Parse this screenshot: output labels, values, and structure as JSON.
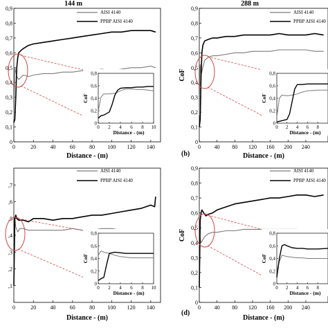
{
  "chart_data": [
    {
      "type": "line",
      "panel": "a",
      "title": "144 m",
      "xlabel": "Distance - (m)",
      "ylabel": "",
      "xlim": [
        0,
        150
      ],
      "ylim": [
        0,
        0.9
      ],
      "xticks": [
        "0",
        "20",
        "40",
        "60",
        "80",
        "100",
        "120",
        "140"
      ],
      "yticks": [
        "0",
        "0,1",
        "0,2",
        "0,3",
        "0,4",
        "0,5",
        "0,6",
        "0,7",
        "0,8",
        "0,9"
      ],
      "panel_label": "",
      "legend": [
        "AISI 4140",
        "PPBP AISI 4140"
      ],
      "series": [
        {
          "name": "AISI 4140",
          "color": "#7a7a7a",
          "x": [
            0,
            1,
            2,
            3,
            5,
            8,
            10,
            15,
            20,
            30,
            40,
            50,
            60,
            70,
            80,
            90,
            100,
            110,
            120,
            130,
            140,
            145
          ],
          "y": [
            0.15,
            0.5,
            0.47,
            0.44,
            0.42,
            0.44,
            0.45,
            0.44,
            0.45,
            0.46,
            0.46,
            0.47,
            0.47,
            0.48,
            0.48,
            0.49,
            0.48,
            0.49,
            0.5,
            0.5,
            0.51,
            0.5
          ]
        },
        {
          "name": "PPBP AISI 4140",
          "color": "#000000",
          "x": [
            0,
            1,
            2,
            3,
            4,
            5,
            8,
            10,
            15,
            20,
            30,
            40,
            50,
            60,
            70,
            80,
            90,
            100,
            110,
            120,
            130,
            140,
            145
          ],
          "y": [
            0.13,
            0.15,
            0.3,
            0.5,
            0.57,
            0.6,
            0.62,
            0.63,
            0.65,
            0.66,
            0.67,
            0.68,
            0.69,
            0.7,
            0.71,
            0.72,
            0.73,
            0.74,
            0.74,
            0.75,
            0.75,
            0.75,
            0.74
          ]
        }
      ],
      "inset": {
        "xlabel": "Distance - (m)",
        "ylabel": "CoF",
        "xlim": [
          0,
          10
        ],
        "ylim": [
          0,
          0.8
        ],
        "xticks": [
          "0",
          "2",
          "4",
          "6",
          "8",
          "10"
        ],
        "yticks": [
          "0",
          "0,2",
          "0,4",
          "0,6",
          "0,8"
        ],
        "series": [
          {
            "name": "AISI 4140",
            "color": "#7a7a7a",
            "x": [
              0,
              0.5,
              1,
              2,
              3,
              4,
              5,
              6,
              7,
              8,
              9,
              10
            ],
            "y": [
              0.2,
              0.42,
              0.47,
              0.47,
              0.48,
              0.52,
              0.55,
              0.55,
              0.54,
              0.54,
              0.53,
              0.52
            ]
          },
          {
            "name": "PPBP AISI 4140",
            "color": "#000000",
            "x": [
              0,
              0.5,
              1,
              2,
              2.5,
              3,
              3.5,
              4,
              5,
              6,
              7,
              8,
              9,
              10
            ],
            "y": [
              0.08,
              0.12,
              0.13,
              0.18,
              0.3,
              0.45,
              0.53,
              0.56,
              0.57,
              0.57,
              0.58,
              0.58,
              0.59,
              0.59
            ]
          }
        ]
      }
    },
    {
      "type": "line",
      "panel": "b",
      "title": "288 m",
      "xlabel": "Distance - (m)",
      "ylabel": "CoF",
      "xlim": [
        0,
        290
      ],
      "ylim": [
        0,
        0.9
      ],
      "xticks": [
        "0",
        "40",
        "80",
        "120",
        "160",
        "200",
        "240"
      ],
      "yticks": [
        "0",
        "0,1",
        "0,2",
        "0,3",
        "0,4",
        "0,5",
        "0,6",
        "0,7",
        "0,8",
        "0,9"
      ],
      "panel_label": "(b)",
      "legend": [
        "AISI 4140",
        "PPBP AISI 4140"
      ],
      "series": [
        {
          "name": "AISI 4140",
          "color": "#7a7a7a",
          "x": [
            0,
            2,
            4,
            8,
            12,
            20,
            30,
            40,
            60,
            80,
            100,
            120,
            140,
            160,
            180,
            200,
            220,
            240,
            260,
            280
          ],
          "y": [
            0.18,
            0.52,
            0.45,
            0.5,
            0.55,
            0.57,
            0.58,
            0.58,
            0.59,
            0.6,
            0.6,
            0.61,
            0.61,
            0.61,
            0.62,
            0.62,
            0.62,
            0.62,
            0.61,
            0.61
          ]
        },
        {
          "name": "PPBP AISI 4140",
          "color": "#000000",
          "x": [
            0,
            2,
            4,
            6,
            8,
            12,
            20,
            30,
            40,
            60,
            80,
            100,
            120,
            140,
            160,
            180,
            200,
            220,
            240,
            260,
            280
          ],
          "y": [
            0.1,
            0.15,
            0.45,
            0.6,
            0.65,
            0.68,
            0.69,
            0.7,
            0.7,
            0.71,
            0.71,
            0.72,
            0.72,
            0.72,
            0.72,
            0.73,
            0.72,
            0.72,
            0.72,
            0.73,
            0.72
          ]
        }
      ],
      "inset": {
        "xlabel": "Distance - (m)",
        "ylabel": "CoF",
        "xlim": [
          0,
          10
        ],
        "ylim": [
          0,
          0.8
        ],
        "xticks": [
          "0",
          "2",
          "4",
          "6",
          "8",
          "10"
        ],
        "yticks": [
          "0",
          "0,2",
          "0,4",
          "0,6",
          "0,8"
        ],
        "series": [
          {
            "name": "AISI 4140",
            "color": "#7a7a7a",
            "x": [
              0,
              0.5,
              1,
              2,
              3,
              4,
              5,
              6,
              8,
              10
            ],
            "y": [
              0.1,
              0.4,
              0.45,
              0.44,
              0.45,
              0.47,
              0.5,
              0.52,
              0.53,
              0.53
            ]
          },
          {
            "name": "PPBP AISI 4140",
            "color": "#000000",
            "x": [
              0,
              1,
              2,
              2.5,
              3,
              3.5,
              4,
              5,
              6,
              8,
              10
            ],
            "y": [
              0.02,
              0.04,
              0.06,
              0.15,
              0.35,
              0.55,
              0.62,
              0.62,
              0.63,
              0.63,
              0.63
            ]
          }
        ]
      }
    },
    {
      "type": "line",
      "panel": "c",
      "title": "",
      "xlabel": "Distance - (m)",
      "ylabel": "",
      "xlim": [
        0,
        150
      ],
      "ylim": [
        0,
        0.8
      ],
      "xticks": [
        "0",
        "20",
        "40",
        "60",
        "80",
        "100",
        "120",
        "140"
      ],
      "yticks": [
        ",1",
        ",2",
        ",3",
        ",4",
        ",5",
        ",6",
        ",7"
      ],
      "panel_label": "",
      "legend": [
        "AISI 4140",
        "PPBP AISI 4140"
      ],
      "series": [
        {
          "name": "AISI 4140",
          "color": "#7a7a7a",
          "x": [
            0,
            1,
            2,
            4,
            6,
            10,
            15,
            20,
            30,
            40,
            50,
            60,
            70,
            80,
            90,
            100,
            110,
            120,
            130,
            140,
            145
          ],
          "y": [
            0.12,
            0.5,
            0.45,
            0.42,
            0.44,
            0.44,
            0.43,
            0.43,
            0.43,
            0.43,
            0.43,
            0.44,
            0.43,
            0.43,
            0.44,
            0.44,
            0.43,
            0.43,
            0.43,
            0.42,
            0.42
          ]
        },
        {
          "name": "PPBP AISI 4140",
          "color": "#000000",
          "x": [
            0,
            1,
            2,
            3,
            5,
            10,
            15,
            20,
            30,
            40,
            50,
            60,
            70,
            80,
            90,
            100,
            110,
            120,
            130,
            140,
            144,
            145
          ],
          "y": [
            0.1,
            0.5,
            0.52,
            0.5,
            0.49,
            0.49,
            0.48,
            0.5,
            0.5,
            0.49,
            0.5,
            0.5,
            0.51,
            0.52,
            0.52,
            0.53,
            0.54,
            0.55,
            0.56,
            0.58,
            0.57,
            0.63
          ]
        }
      ],
      "inset": {
        "xlabel": "Distance - (m)",
        "ylabel": "CoF",
        "xlim": [
          0,
          10
        ],
        "ylim": [
          0,
          0.8
        ],
        "xticks": [
          "0",
          "2",
          "4",
          "6",
          "8",
          "10"
        ],
        "yticks": [
          "0",
          "0,2",
          "0,4",
          "0,6",
          "0,8"
        ],
        "series": [
          {
            "name": "AISI 4140",
            "color": "#7a7a7a",
            "x": [
              0,
              0.5,
              1,
              2,
              3,
              4,
              5,
              6,
              8,
              10
            ],
            "y": [
              0.45,
              0.52,
              0.5,
              0.48,
              0.45,
              0.43,
              0.42,
              0.41,
              0.41,
              0.41
            ]
          },
          {
            "name": "PPBP AISI 4140",
            "color": "#000000",
            "x": [
              0,
              0.5,
              1,
              1.5,
              2,
              3,
              4,
              5,
              6,
              8,
              10
            ],
            "y": [
              0.05,
              0.08,
              0.1,
              0.3,
              0.48,
              0.5,
              0.49,
              0.48,
              0.48,
              0.48,
              0.48
            ]
          }
        ]
      }
    },
    {
      "type": "line",
      "panel": "d",
      "title": "",
      "xlabel": "Distance - (m)",
      "ylabel": "CoF",
      "xlim": [
        0,
        290
      ],
      "ylim": [
        0,
        0.9
      ],
      "xticks": [
        "0",
        "40",
        "80",
        "120",
        "160",
        "200",
        "240"
      ],
      "yticks": [
        "0",
        "0,1",
        "0,2",
        "0,3",
        "0,4",
        "0,5",
        "0,6",
        "0,7",
        "0,8",
        "0,9"
      ],
      "panel_label": "(d)",
      "legend": [
        "AISI 4140",
        "PPBP AISI 4140"
      ],
      "series": [
        {
          "name": "AISI 4140",
          "color": "#7a7a7a",
          "x": [
            0,
            2,
            4,
            8,
            12,
            20,
            30,
            40,
            60,
            80,
            100,
            120,
            140,
            160,
            180,
            200,
            220,
            240,
            260,
            280
          ],
          "y": [
            0.15,
            0.43,
            0.4,
            0.42,
            0.44,
            0.46,
            0.47,
            0.47,
            0.48,
            0.48,
            0.49,
            0.49,
            0.49,
            0.49,
            0.49,
            0.49,
            0.49,
            0.48,
            0.49,
            0.48
          ]
        },
        {
          "name": "PPBP AISI 4140",
          "color": "#000000",
          "x": [
            0,
            2,
            4,
            6,
            10,
            15,
            20,
            30,
            40,
            60,
            80,
            100,
            120,
            140,
            160,
            180,
            200,
            220,
            240,
            260,
            280
          ],
          "y": [
            0.1,
            0.55,
            0.6,
            0.62,
            0.6,
            0.58,
            0.59,
            0.6,
            0.62,
            0.64,
            0.66,
            0.67,
            0.68,
            0.69,
            0.7,
            0.7,
            0.71,
            0.72,
            0.72,
            0.71,
            0.72
          ]
        }
      ],
      "inset": {
        "xlabel": "Distance - (m)",
        "ylabel": "CoF",
        "xlim": [
          0,
          10
        ],
        "ylim": [
          0,
          0.8
        ],
        "xticks": [
          "0",
          "2",
          "4",
          "6",
          "8",
          "10"
        ],
        "yticks": [
          "0",
          "0,2",
          "0,4",
          "0,6",
          "0,8"
        ],
        "series": [
          {
            "name": "AISI 4140",
            "color": "#7a7a7a",
            "x": [
              0,
              0.5,
              1,
              2,
              3,
              4,
              5,
              6,
              8,
              10
            ],
            "y": [
              0.2,
              0.35,
              0.45,
              0.43,
              0.42,
              0.41,
              0.41,
              0.4,
              0.4,
              0.4
            ]
          },
          {
            "name": "PPBP AISI 4140",
            "color": "#000000",
            "x": [
              0,
              0.5,
              1,
              1.5,
              2,
              3,
              4,
              5,
              6,
              8,
              10
            ],
            "y": [
              0.1,
              0.4,
              0.6,
              0.62,
              0.6,
              0.57,
              0.56,
              0.56,
              0.55,
              0.55,
              0.56
            ]
          }
        ]
      }
    }
  ]
}
